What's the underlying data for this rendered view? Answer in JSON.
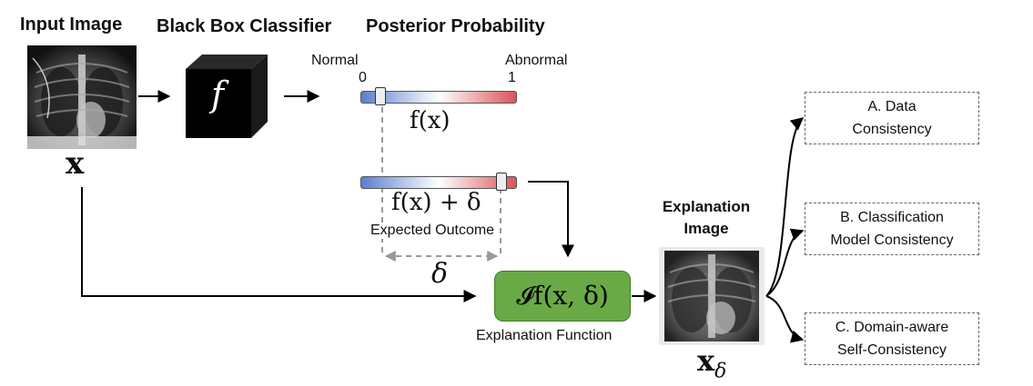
{
  "headings": {
    "input_image": "Input Image",
    "black_box": "Black Box Classifier",
    "posterior": "Posterior Probability",
    "explanation_image": "Explanation\nImage"
  },
  "classifier_symbol": "f",
  "slider": {
    "normal_label": "Normal",
    "abnormal_label": "Abnormal",
    "min_label": "0",
    "max_label": "1",
    "posterior_value": 0.13,
    "expected_value": 0.9,
    "color_low": "#5b7fd0",
    "color_high": "#d9545a"
  },
  "math": {
    "x": "x",
    "x_delta_base": "x",
    "x_delta_sub": "δ",
    "fx": "f(x)",
    "fx_delta": "f(x) + δ",
    "delta": "δ",
    "explanation_func": "𝓘f(x, δ)"
  },
  "labels": {
    "expected_outcome": "Expected Outcome",
    "explanation_function": "Explanation Function"
  },
  "consistency_boxes": [
    {
      "label": "A. Data\nConsistency"
    },
    {
      "label": "B. Classification\nModel Consistency"
    },
    {
      "label": "C. Domain-aware\nSelf-Consistency"
    }
  ],
  "colors": {
    "explanation_box": "#6aaa46",
    "cube": "#000000"
  }
}
